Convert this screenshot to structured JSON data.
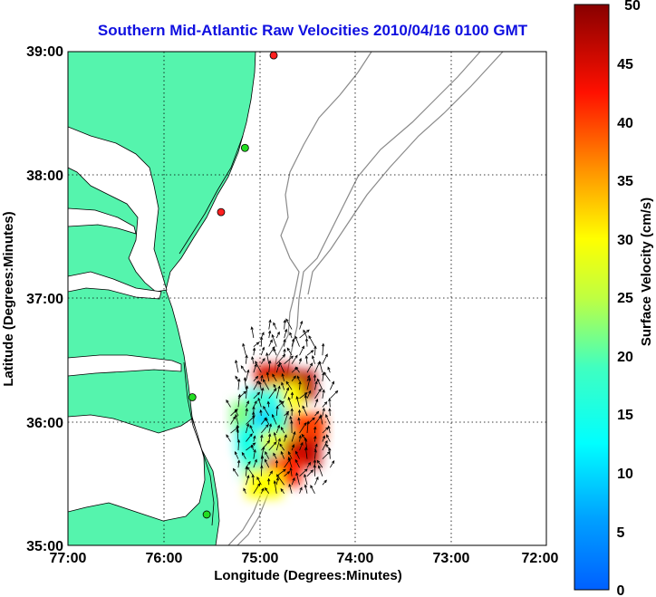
{
  "title": "Southern Mid-Atlantic Raw Velocities 2010/04/16 0100 GMT",
  "x_axis": {
    "label": "Longitude (Degrees:Minutes)",
    "ticks": [
      "77:00",
      "76:00",
      "75:00",
      "74:00",
      "73:00",
      "72:00"
    ]
  },
  "y_axis": {
    "label": "Latitude (Degrees:Minutes)",
    "ticks": [
      "39:00",
      "38:00",
      "37:00",
      "36:00",
      "35:00"
    ]
  },
  "colorbar": {
    "label": "Surface Velocity (cm/s)",
    "ticks": [
      "50",
      "45",
      "40",
      "35",
      "30",
      "25",
      "20",
      "15",
      "10",
      "5",
      "0"
    ],
    "min": 0,
    "max": 50,
    "colormap": "jet"
  },
  "map": {
    "lon_range": [
      -77,
      -72
    ],
    "lat_range": [
      35,
      39
    ],
    "grid": "dotted",
    "land_color": "#55f4ad",
    "water_color": "#ffffff",
    "bathymetry_color": "#8a8a8a"
  },
  "stations": [
    {
      "lon": -74.85,
      "lat": 38.97,
      "color": "#ff2020"
    },
    {
      "lon": -75.15,
      "lat": 38.22,
      "color": "#22dd22"
    },
    {
      "lon": -75.4,
      "lat": 37.7,
      "color": "#ff2020"
    },
    {
      "lon": -75.7,
      "lat": 36.2,
      "color": "#22dd22"
    },
    {
      "lon": -75.55,
      "lat": 35.25,
      "color": "#22dd22"
    }
  ],
  "velocity_field": {
    "description_units": "cm/s",
    "patches": [
      {
        "lon": -74.85,
        "lat": 36.35,
        "speed": 45
      },
      {
        "lon": -74.6,
        "lat": 36.3,
        "speed": 47
      },
      {
        "lon": -74.75,
        "lat": 36.2,
        "speed": 30
      },
      {
        "lon": -74.95,
        "lat": 36.15,
        "speed": 14
      },
      {
        "lon": -75.1,
        "lat": 36.05,
        "speed": 22
      },
      {
        "lon": -74.9,
        "lat": 36.0,
        "speed": 10
      },
      {
        "lon": -74.7,
        "lat": 35.95,
        "speed": 18
      },
      {
        "lon": -74.5,
        "lat": 35.95,
        "speed": 40
      },
      {
        "lon": -75.05,
        "lat": 35.85,
        "speed": 15
      },
      {
        "lon": -74.8,
        "lat": 35.8,
        "speed": 28
      },
      {
        "lon": -74.55,
        "lat": 35.75,
        "speed": 46
      },
      {
        "lon": -75.0,
        "lat": 35.65,
        "speed": 17
      },
      {
        "lon": -74.75,
        "lat": 35.6,
        "speed": 42
      },
      {
        "lon": -74.95,
        "lat": 35.5,
        "speed": 30
      }
    ]
  }
}
